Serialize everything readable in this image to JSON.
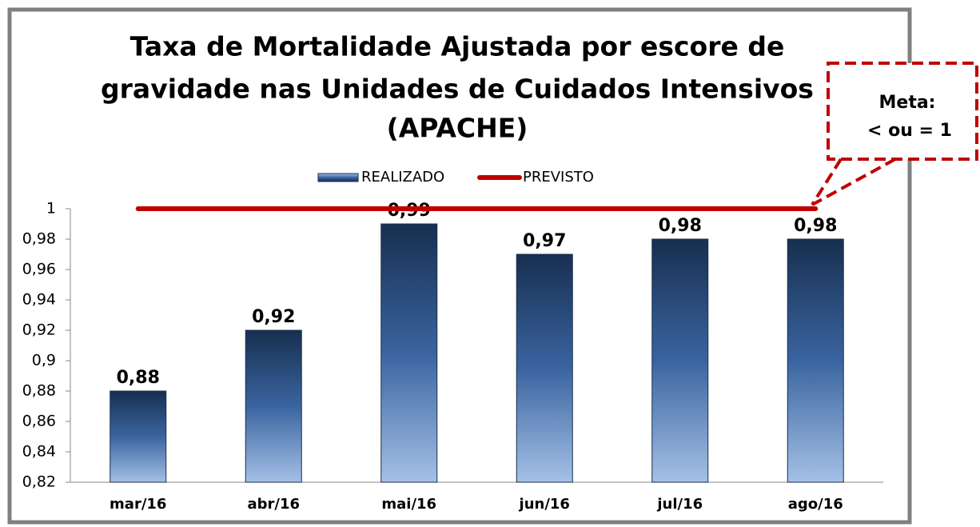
{
  "chart_data": {
    "type": "bar",
    "title": [
      "Taxa de Mortalidade Ajustada por escore de",
      "gravidade nas Unidades de Cuidados Intensivos",
      "(APACHE)"
    ],
    "categories": [
      "mar/16",
      "abr/16",
      "mai/16",
      "jun/16",
      "jul/16",
      "ago/16"
    ],
    "series": [
      {
        "name": "REALIZADO",
        "type": "bar",
        "color": "#2e5487",
        "values": [
          0.88,
          0.92,
          0.99,
          0.97,
          0.98,
          0.98
        ],
        "value_labels": [
          "0,88",
          "0,92",
          "0,99",
          "0,97",
          "0,98",
          "0,98"
        ]
      },
      {
        "name": "PREVISTO",
        "type": "line",
        "color": "#c00000",
        "values": [
          1,
          1,
          1,
          1,
          1,
          1
        ]
      }
    ],
    "ylim": [
      0.82,
      1
    ],
    "yticks": [
      {
        "value": 0.82,
        "label": "0,82"
      },
      {
        "value": 0.84,
        "label": "0,84"
      },
      {
        "value": 0.86,
        "label": "0,86"
      },
      {
        "value": 0.88,
        "label": "0,88"
      },
      {
        "value": 0.9,
        "label": "0,9"
      },
      {
        "value": 0.92,
        "label": "0,92"
      },
      {
        "value": 0.94,
        "label": "0,94"
      },
      {
        "value": 0.96,
        "label": "0,96"
      },
      {
        "value": 0.98,
        "label": "0,98"
      },
      1
    ],
    "legend": "top",
    "annotation": [
      "Meta:",
      "< ou = 1"
    ]
  }
}
